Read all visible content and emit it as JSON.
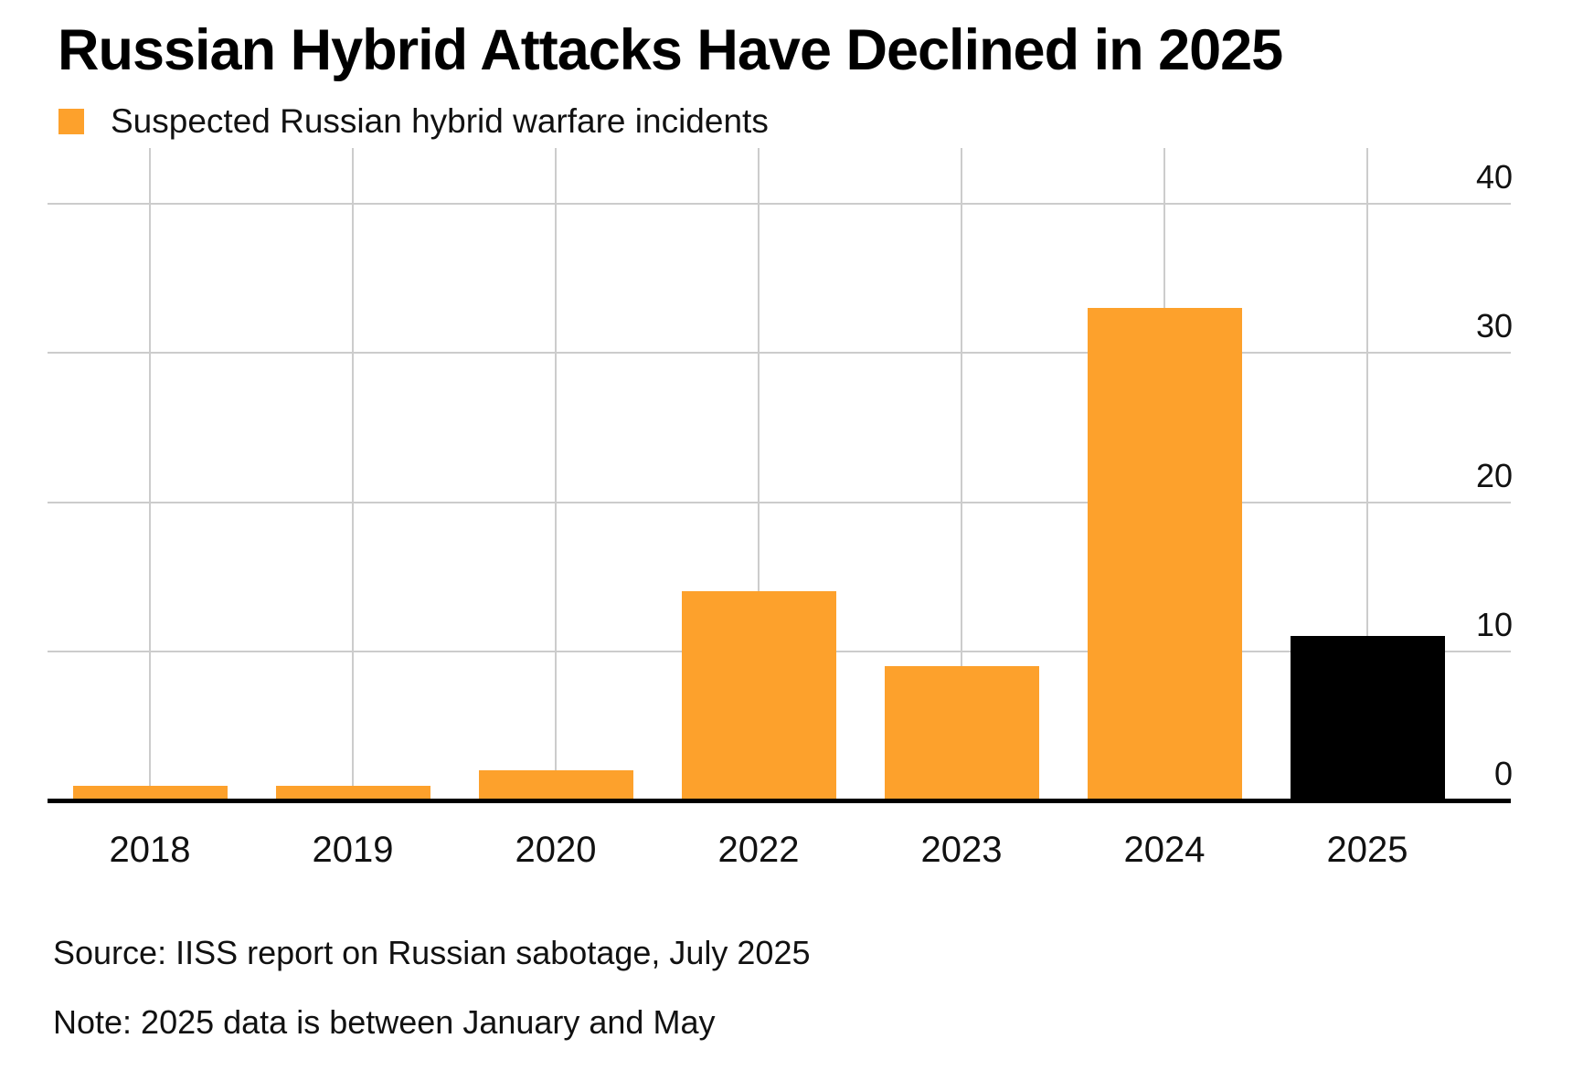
{
  "title": "Russian Hybrid Attacks Have Declined in 2025",
  "legend": {
    "label": "Suspected Russian hybrid warfare incidents",
    "swatch_color": "#FDA12C",
    "swatch_icon": "square-icon"
  },
  "source": "Source: IISS report on Russian sabotage, July 2025",
  "note": "Note: 2025 data is between January and May",
  "colors": {
    "bar_orange": "#FDA12C",
    "bar_highlight_black": "#000000",
    "gridline_gray": "#cccccc",
    "axis_black": "#000000",
    "text_black": "#111111"
  },
  "chart_data": {
    "type": "bar",
    "title": "Russian Hybrid Attacks Have Declined in 2025",
    "categories": [
      "2018",
      "2019",
      "2020",
      "2022",
      "2023",
      "2024",
      "2025"
    ],
    "values": [
      1,
      1,
      2,
      14,
      9,
      33,
      11
    ],
    "series": [
      {
        "name": "Suspected Russian hybrid warfare incidents",
        "values": [
          1,
          1,
          2,
          14,
          9,
          33,
          11
        ]
      }
    ],
    "bar_colors": [
      "#FDA12C",
      "#FDA12C",
      "#FDA12C",
      "#FDA12C",
      "#FDA12C",
      "#FDA12C",
      "#000000"
    ],
    "highlighted_category": "2025",
    "xlabel": "",
    "ylabel": "",
    "y_ticks": [
      0,
      10,
      20,
      30,
      40
    ],
    "ylim": [
      0,
      40
    ],
    "y_axis_side": "right",
    "grid": true,
    "legend_entries": [
      "Suspected Russian hybrid warfare incidents"
    ],
    "legend_position": "top-left"
  }
}
